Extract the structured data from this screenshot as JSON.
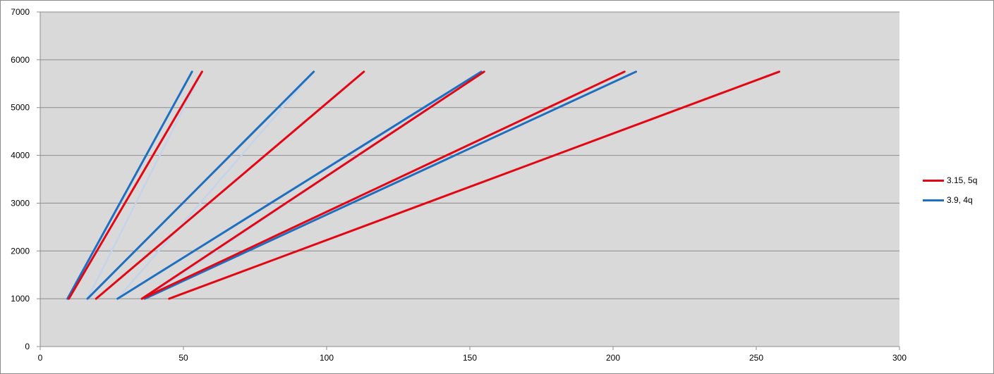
{
  "chart_data": {
    "type": "line",
    "title": "",
    "xlabel": "",
    "ylabel": "",
    "xlim": [
      0,
      300
    ],
    "ylim": [
      0,
      7000
    ],
    "xticks": [
      0,
      50,
      100,
      150,
      200,
      250,
      300
    ],
    "yticks": [
      0,
      1000,
      2000,
      3000,
      4000,
      5000,
      6000,
      7000
    ],
    "grid": "horizontal",
    "legend_position": "right",
    "plot_background": "#d9d9d9",
    "series": [
      {
        "name": "3.15, 5q",
        "color": "#e30613",
        "lines": [
          [
            [
              10,
              1000
            ],
            [
              56.5,
              5750
            ]
          ],
          [
            [
              19.5,
              1000
            ],
            [
              113,
              5750
            ]
          ],
          [
            [
              35.5,
              1000
            ],
            [
              155,
              5750
            ]
          ],
          [
            [
              35.5,
              1000
            ],
            [
              204,
              5750
            ]
          ],
          [
            [
              45,
              1000
            ],
            [
              258,
              5750
            ]
          ]
        ]
      },
      {
        "name": "3.9, 4q",
        "color": "#1f6fc0",
        "lines": [
          [
            [
              9.5,
              1000
            ],
            [
              53,
              5750
            ]
          ],
          [
            [
              16.5,
              1000
            ],
            [
              95.5,
              5750
            ]
          ],
          [
            [
              27,
              1000
            ],
            [
              154,
              5750
            ]
          ],
          [
            [
              36.5,
              1000
            ],
            [
              208,
              5750
            ]
          ]
        ]
      },
      {
        "color": "#c5d4ea",
        "lines": [
          [
            [
              10,
              1000
            ],
            [
              56.5,
              5750
            ]
          ],
          [
            [
              16.5,
              1000
            ],
            [
              56.5,
              5750
            ]
          ],
          [
            [
              16.5,
              1000
            ],
            [
              95.5,
              5750
            ]
          ],
          [
            [
              27,
              1000
            ],
            [
              95.5,
              5750
            ]
          ],
          [
            [
              27,
              1000
            ],
            [
              154,
              5750
            ]
          ],
          [
            [
              36.5,
              1000
            ],
            [
              154,
              5750
            ]
          ],
          [
            [
              36.5,
              1000
            ],
            [
              155,
              5750
            ]
          ]
        ]
      }
    ]
  }
}
